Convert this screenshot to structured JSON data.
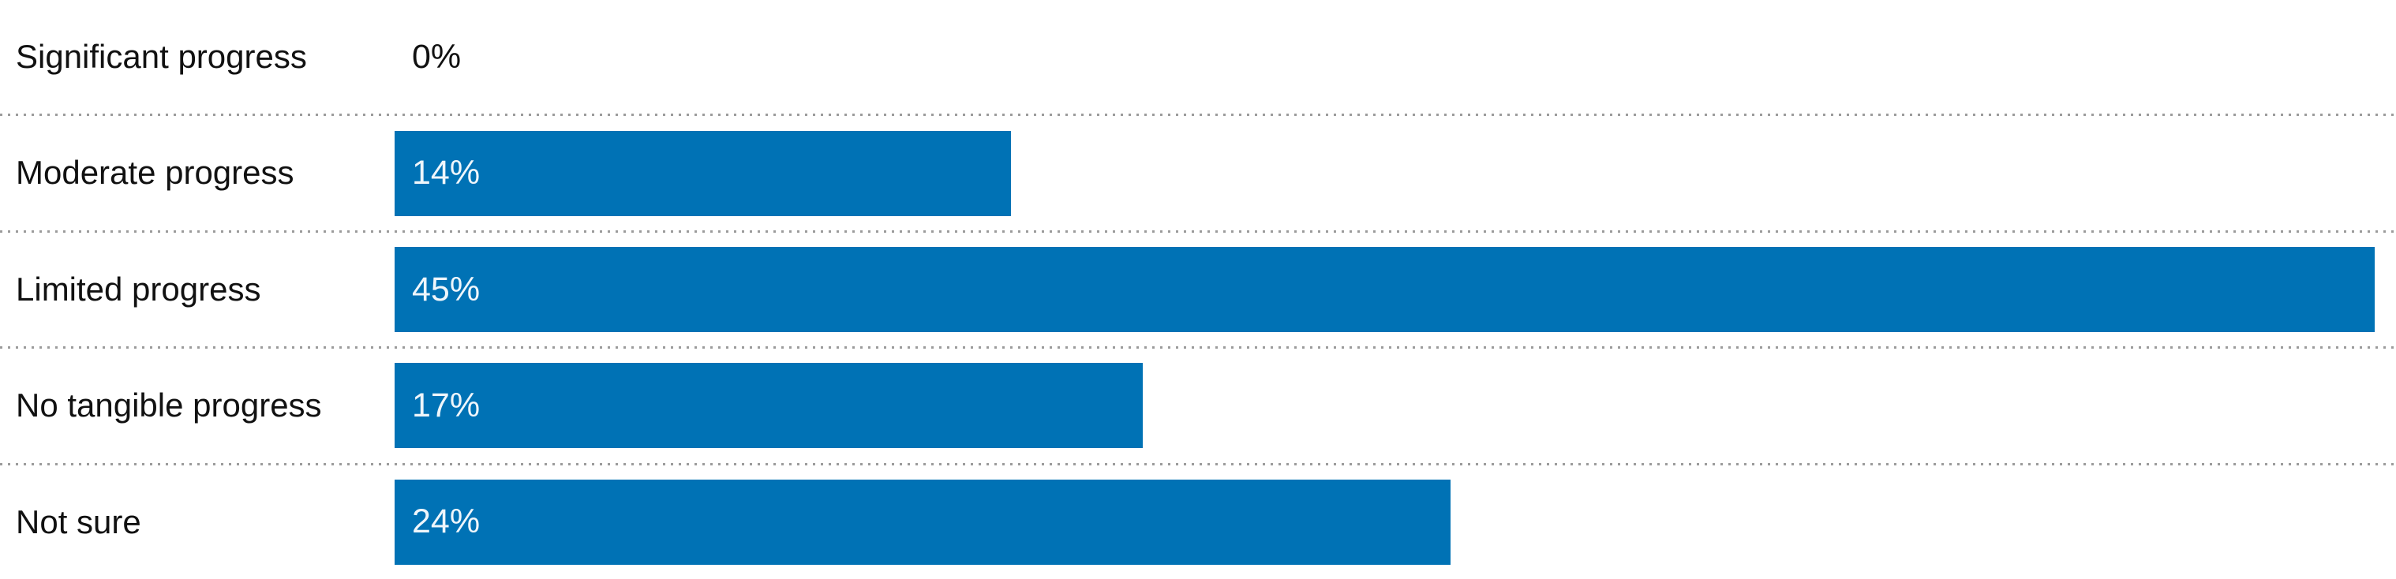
{
  "chart_data": {
    "type": "bar",
    "orientation": "horizontal",
    "title": "",
    "xlabel": "",
    "ylabel": "",
    "scale_max": 45,
    "grid": "dotted-row-separators",
    "legend": "none",
    "categories": [
      "Significant progress",
      "Moderate progress",
      "Limited progress",
      "No tangible progress",
      "Not sure"
    ],
    "values": [
      0,
      14,
      45,
      17,
      24
    ],
    "rows": [
      {
        "label": "Significant progress",
        "value": 0,
        "value_label": "0%"
      },
      {
        "label": "Moderate progress",
        "value": 14,
        "value_label": "14%"
      },
      {
        "label": "Limited progress",
        "value": 45,
        "value_label": "45%"
      },
      {
        "label": "No tangible progress",
        "value": 17,
        "value_label": "17%"
      },
      {
        "label": "Not sure",
        "value": 24,
        "value_label": "24%"
      }
    ],
    "colors": {
      "bar": "#0072b5",
      "value_text_in_bar": "#eff6fb",
      "value_text_zero": "#111111",
      "category_text": "#111111",
      "separator_dots": "#9b9b9b",
      "background": "#ffffff"
    }
  }
}
